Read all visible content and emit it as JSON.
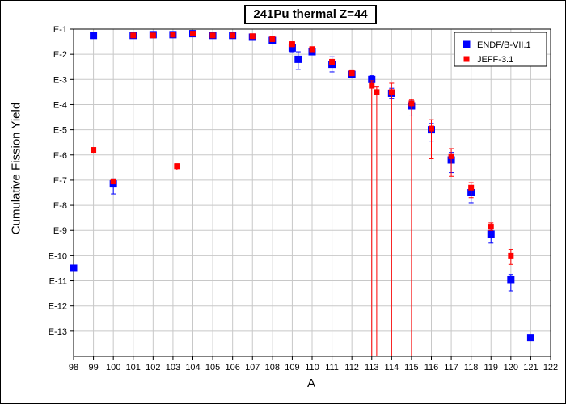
{
  "chart_data": {
    "type": "scatter",
    "title": "241Pu thermal Z=44",
    "xlabel": "A",
    "ylabel": "Cumulative Fission Yield",
    "xlim": [
      98,
      122
    ],
    "ylog": true,
    "ylim_exp": [
      -14,
      -1
    ],
    "x_ticks": [
      "98",
      "99",
      "100",
      "101",
      "102",
      "103",
      "104",
      "105",
      "106",
      "107",
      "108",
      "109",
      "110",
      "111",
      "112",
      "113",
      "114",
      "115",
      "116",
      "117",
      "118",
      "119",
      "120",
      "121",
      "122"
    ],
    "y_ticks": [
      {
        "exp": -1,
        "label": "E-1"
      },
      {
        "exp": -2,
        "label": "E-2"
      },
      {
        "exp": -3,
        "label": "E-3"
      },
      {
        "exp": -4,
        "label": "E-4"
      },
      {
        "exp": -5,
        "label": "E-5"
      },
      {
        "exp": -6,
        "label": "E-6"
      },
      {
        "exp": -7,
        "label": "E-7"
      },
      {
        "exp": -8,
        "label": "E-8"
      },
      {
        "exp": -9,
        "label": "E-9"
      },
      {
        "exp": -10,
        "label": "E-10"
      },
      {
        "exp": -11,
        "label": "E-11"
      },
      {
        "exp": -12,
        "label": "E-12"
      },
      {
        "exp": -13,
        "label": "E-13"
      }
    ],
    "grid": true,
    "legend_position": "top-right",
    "series": [
      {
        "name": "ENDF/B-VII.1",
        "color": "#0000ff",
        "marker": "square",
        "points": [
          {
            "x": 98,
            "exp": -10.5,
            "err_lo": 0,
            "err_hi": 0
          },
          {
            "x": 99,
            "exp": -1.25,
            "err_lo": 0,
            "err_hi": 0
          },
          {
            "x": 100,
            "exp": -7.15,
            "err_lo": 0.4,
            "err_hi": 0.2
          },
          {
            "x": 101,
            "exp": -1.25,
            "err_lo": 0,
            "err_hi": 0
          },
          {
            "x": 102,
            "exp": -1.22,
            "err_lo": 0,
            "err_hi": 0
          },
          {
            "x": 103,
            "exp": -1.22,
            "err_lo": 0,
            "err_hi": 0
          },
          {
            "x": 104,
            "exp": -1.18,
            "err_lo": 0,
            "err_hi": 0
          },
          {
            "x": 105,
            "exp": -1.25,
            "err_lo": 0,
            "err_hi": 0
          },
          {
            "x": 106,
            "exp": -1.25,
            "err_lo": 0,
            "err_hi": 0
          },
          {
            "x": 107,
            "exp": -1.32,
            "err_lo": 0,
            "err_hi": 0
          },
          {
            "x": 108,
            "exp": -1.45,
            "err_lo": 0,
            "err_hi": 0
          },
          {
            "x": 109,
            "exp": -1.75,
            "err_lo": 0.15,
            "err_hi": 0.15
          },
          {
            "x": 109.3,
            "exp": -2.2,
            "err_lo": 0.4,
            "err_hi": 0.3
          },
          {
            "x": 110,
            "exp": -1.9,
            "err_lo": 0.1,
            "err_hi": 0.1
          },
          {
            "x": 111,
            "exp": -2.4,
            "err_lo": 0.3,
            "err_hi": 0.3
          },
          {
            "x": 112,
            "exp": -2.8,
            "err_lo": 0.05,
            "err_hi": 0.05
          },
          {
            "x": 113,
            "exp": -3.0,
            "err_lo": 0.3,
            "err_hi": 0.15
          },
          {
            "x": 114,
            "exp": -3.55,
            "err_lo": 0.2,
            "err_hi": 0.2
          },
          {
            "x": 115,
            "exp": -4.05,
            "err_lo": 0.4,
            "err_hi": 0.2
          },
          {
            "x": 116,
            "exp": -5.0,
            "err_lo": 0.45,
            "err_hi": 0.25
          },
          {
            "x": 117,
            "exp": -6.2,
            "err_lo": 0.5,
            "err_hi": 0.3
          },
          {
            "x": 118,
            "exp": -7.5,
            "err_lo": 0.4,
            "err_hi": 0.2
          },
          {
            "x": 119,
            "exp": -9.15,
            "err_lo": 0.35,
            "err_hi": 0.2
          },
          {
            "x": 120,
            "exp": -10.95,
            "err_lo": 0.45,
            "err_hi": 0.2
          },
          {
            "x": 121,
            "exp": -13.25,
            "err_lo": 0,
            "err_hi": 0
          }
        ]
      },
      {
        "name": "JEFF-3.1",
        "color": "#ff0000",
        "marker": "square",
        "points": [
          {
            "x": 99,
            "exp": -5.8,
            "err_lo": 0,
            "err_hi": 0
          },
          {
            "x": 100,
            "exp": -7.05,
            "err_lo": 0.1,
            "err_hi": 0.1
          },
          {
            "x": 101,
            "exp": -1.25,
            "err_lo": 0,
            "err_hi": 0
          },
          {
            "x": 102,
            "exp": -1.25,
            "err_lo": 0,
            "err_hi": 0
          },
          {
            "x": 103,
            "exp": -1.22,
            "err_lo": 0,
            "err_hi": 0
          },
          {
            "x": 103.2,
            "exp": -6.45,
            "err_lo": 0.15,
            "err_hi": 0.1
          },
          {
            "x": 104,
            "exp": -1.18,
            "err_lo": 0,
            "err_hi": 0
          },
          {
            "x": 105,
            "exp": -1.25,
            "err_lo": 0,
            "err_hi": 0
          },
          {
            "x": 106,
            "exp": -1.25,
            "err_lo": 0,
            "err_hi": 0
          },
          {
            "x": 107,
            "exp": -1.28,
            "err_lo": 0,
            "err_hi": 0
          },
          {
            "x": 108,
            "exp": -1.4,
            "err_lo": 0,
            "err_hi": 0
          },
          {
            "x": 109,
            "exp": -1.6,
            "err_lo": 0.1,
            "err_hi": 0.1
          },
          {
            "x": 110,
            "exp": -1.8,
            "err_lo": 0.1,
            "err_hi": 0.1
          },
          {
            "x": 111,
            "exp": -2.3,
            "err_lo": 0.1,
            "err_hi": 0.1
          },
          {
            "x": 112,
            "exp": -2.75,
            "err_lo": 0.1,
            "err_hi": 0.1
          },
          {
            "x": 113,
            "exp": -3.25,
            "err_lo": 10.75,
            "err_hi": 0.2
          },
          {
            "x": 113.25,
            "exp": -3.5,
            "err_lo": 10.5,
            "err_hi": 0.2
          },
          {
            "x": 114,
            "exp": -3.5,
            "err_lo": 10.5,
            "err_hi": 0.35
          },
          {
            "x": 115,
            "exp": -3.95,
            "err_lo": 10.05,
            "err_hi": 0.15
          },
          {
            "x": 116,
            "exp": -4.95,
            "err_lo": 1.2,
            "err_hi": 0.35
          },
          {
            "x": 117,
            "exp": -6.05,
            "err_lo": 0.8,
            "err_hi": 0.3
          },
          {
            "x": 118,
            "exp": -7.3,
            "err_lo": 0.4,
            "err_hi": 0.2
          },
          {
            "x": 119,
            "exp": -8.85,
            "err_lo": 0.15,
            "err_hi": 0.15
          },
          {
            "x": 120,
            "exp": -10.0,
            "err_lo": 0.35,
            "err_hi": 0.25
          }
        ]
      }
    ]
  }
}
